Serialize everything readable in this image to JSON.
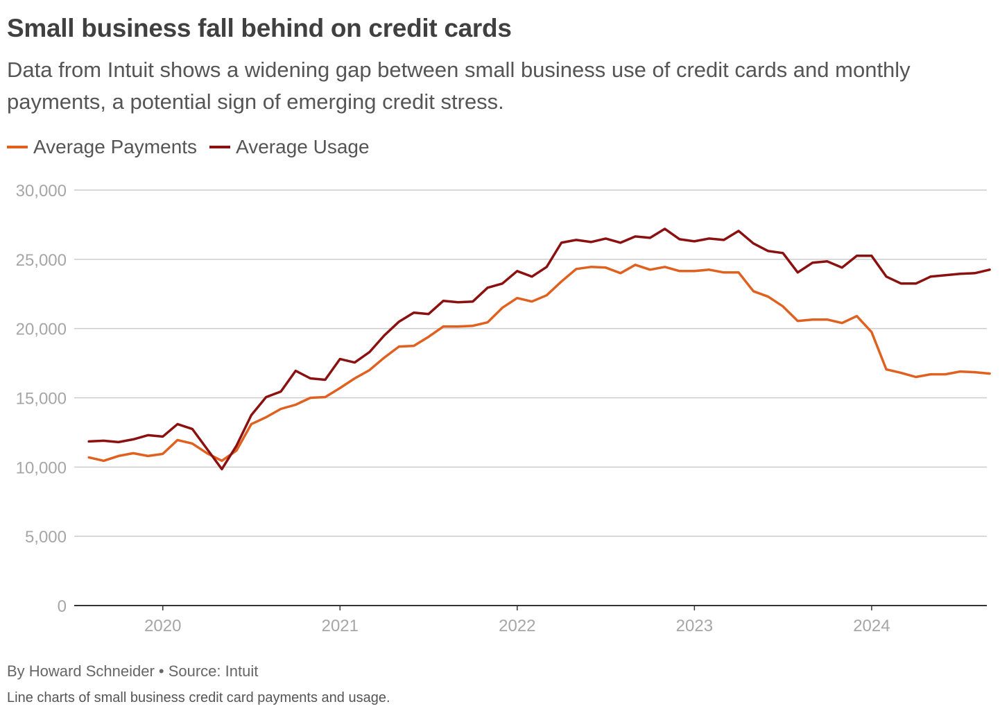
{
  "header": {
    "title": "Small business fall behind on credit cards",
    "subtitle": "Data from Intuit shows a widening gap between small business use of credit cards and monthly payments, a potential sign of emerging credit stress."
  },
  "footer": {
    "byline": "By Howard Schneider • Source: Intuit",
    "caption": "Line charts of small business credit card payments and usage."
  },
  "colors": {
    "payments": "#e0601f",
    "usage": "#8b1010",
    "grid": "#cccccc",
    "axis": "#333333",
    "tick": "#a6a6a6"
  },
  "chart_data": {
    "type": "line",
    "title": "Small business fall behind on credit cards",
    "xlabel": "",
    "ylabel": "",
    "ylim": [
      0,
      30000
    ],
    "yticks": [
      0,
      5000,
      10000,
      15000,
      20000,
      25000,
      30000
    ],
    "ytick_labels": [
      "0",
      "5,000",
      "10,000",
      "15,000",
      "20,000",
      "25,000",
      "30,000"
    ],
    "xlim": [
      2019.5,
      2024.65
    ],
    "xticks": [
      2020,
      2021,
      2022,
      2023,
      2024
    ],
    "xtick_labels": [
      "2020",
      "2021",
      "2022",
      "2023",
      "2024"
    ],
    "grid": true,
    "legend_position": "top-left",
    "x_start": 2019.583,
    "x_step": 0.08333,
    "series": [
      {
        "name": "Average Payments",
        "color_key": "payments",
        "values": [
          10700,
          10450,
          10800,
          11000,
          10800,
          10950,
          11950,
          11700,
          11000,
          10450,
          11200,
          13100,
          13600,
          14200,
          14500,
          15000,
          15050,
          15700,
          16400,
          17000,
          17900,
          18700,
          18750,
          19400,
          20150,
          20150,
          20200,
          20450,
          21500,
          22200,
          21950,
          22400,
          23400,
          24300,
          24450,
          24400,
          24000,
          24600,
          24250,
          24450,
          24150,
          24150,
          24250,
          24050,
          24050,
          22700,
          22300,
          21600,
          20550,
          20650,
          20650,
          20400,
          20900,
          19750,
          17050,
          16800,
          16500,
          16700,
          16700,
          16900,
          16850,
          16750
        ]
      },
      {
        "name": "Average Usage",
        "color_key": "usage",
        "values": [
          11850,
          11900,
          11800,
          12000,
          12300,
          12200,
          13100,
          12750,
          11300,
          9850,
          11550,
          13750,
          15050,
          15450,
          16950,
          16400,
          16300,
          17800,
          17550,
          18300,
          19500,
          20500,
          21150,
          21050,
          22000,
          21900,
          21950,
          22950,
          23250,
          24150,
          23750,
          24450,
          26200,
          26400,
          26250,
          26500,
          26200,
          26650,
          26550,
          27200,
          26450,
          26300,
          26500,
          26400,
          27050,
          26150,
          25600,
          25450,
          24050,
          24750,
          24850,
          24400,
          25250,
          25250,
          23750,
          23250,
          23250,
          23750,
          23850,
          23950,
          24000,
          24250
        ]
      }
    ]
  }
}
